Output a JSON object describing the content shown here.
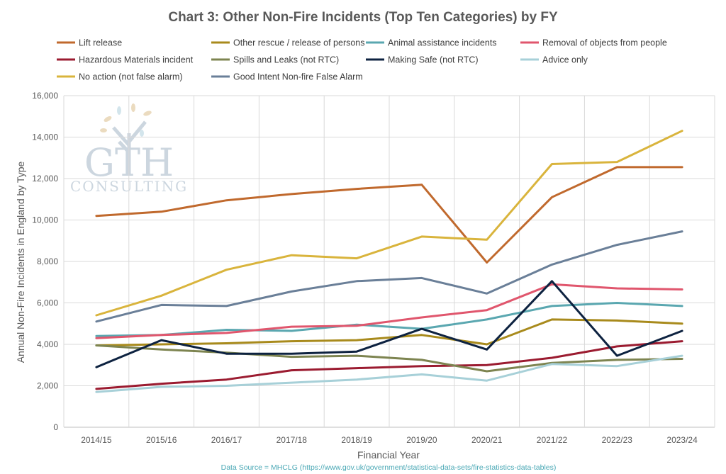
{
  "chart_data": {
    "type": "line",
    "title": "Chart 3: Other Non-Fire Incidents (Top Ten Categories) by FY",
    "xlabel": "Financial Year",
    "ylabel": "Annual Non-Fire Incidents in England by Type",
    "ylim": [
      0,
      16000
    ],
    "ytick_step": 2000,
    "ytick_labels": [
      "0",
      "2,000",
      "4,000",
      "6,000",
      "8,000",
      "10,000",
      "12,000",
      "14,000",
      "16,000"
    ],
    "grid": true,
    "legend_position": "top",
    "categories": [
      "2014/15",
      "2015/16",
      "2016/17",
      "2017/18",
      "2018/19",
      "2019/20",
      "2020/21",
      "2021/22",
      "2022/23",
      "2023/24"
    ],
    "series": [
      {
        "name": "Lift release",
        "color": "#c0692d",
        "values": [
          10200,
          10400,
          10950,
          11250,
          11500,
          11700,
          7950,
          11100,
          12550,
          12550
        ]
      },
      {
        "name": "Other rescue / release of persons",
        "color": "#a88a1c",
        "values": [
          3950,
          4000,
          4050,
          4150,
          4200,
          4450,
          4000,
          5200,
          5150,
          5000
        ]
      },
      {
        "name": "Animal assistance incidents",
        "color": "#5aa7b0",
        "values": [
          4400,
          4450,
          4700,
          4650,
          4950,
          4750,
          5200,
          5850,
          6000,
          5850
        ]
      },
      {
        "name": "Removal of objects from people",
        "color": "#e0566d",
        "values": [
          4300,
          4450,
          4550,
          4850,
          4900,
          5300,
          5650,
          6900,
          6700,
          6650
        ]
      },
      {
        "name": "Hazardous Materials incident",
        "color": "#9b1b30",
        "values": [
          1850,
          2100,
          2300,
          2750,
          2850,
          2950,
          3000,
          3350,
          3900,
          4150
        ]
      },
      {
        "name": "Spills and Leaks (not RTC)",
        "color": "#7d8450",
        "values": [
          3950,
          3750,
          3600,
          3400,
          3450,
          3250,
          2700,
          3100,
          3250,
          3300
        ]
      },
      {
        "name": "Making Safe (not RTC)",
        "color": "#0d2240",
        "values": [
          2900,
          4200,
          3550,
          3550,
          3650,
          4750,
          3750,
          7050,
          3450,
          4650
        ]
      },
      {
        "name": "Advice only",
        "color": "#a7d0d8",
        "values": [
          1700,
          1950,
          2000,
          2150,
          2300,
          2550,
          2250,
          3050,
          2950,
          3450
        ]
      },
      {
        "name": "No action (not false alarm)",
        "color": "#d9b43c",
        "values": [
          5400,
          6350,
          7600,
          8300,
          8150,
          9200,
          9050,
          12700,
          12800,
          14300
        ]
      },
      {
        "name": "Good Intent Non-fire False Alarm",
        "color": "#6a7f98",
        "values": [
          5100,
          5900,
          5850,
          6550,
          7050,
          7200,
          6450,
          7850,
          8800,
          9450
        ]
      }
    ]
  },
  "watermark": {
    "line1": "GTH",
    "line2": "CONSULTING"
  },
  "source": "Data Source = MHCLG (https://www.gov.uk/government/statistical-data-sets/fire-statistics-data-tables)"
}
